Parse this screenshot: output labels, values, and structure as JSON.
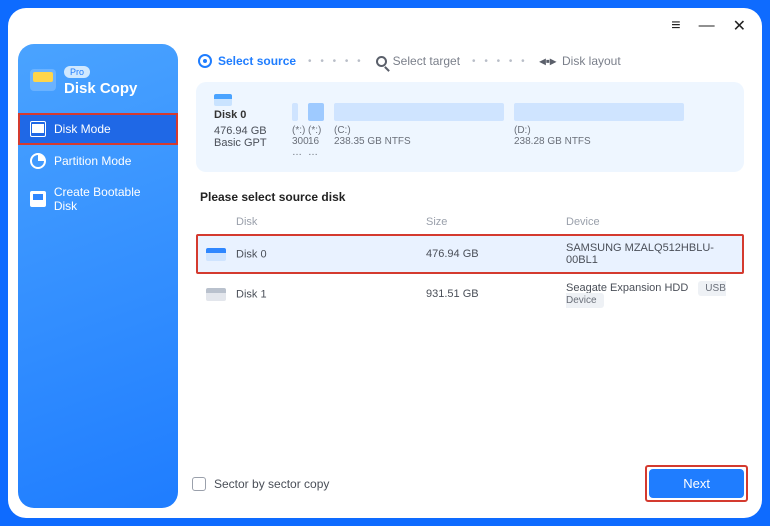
{
  "brand": {
    "badge": "Pro",
    "name": "Disk Copy"
  },
  "nav": {
    "disk_mode": "Disk Mode",
    "partition_mode": "Partition Mode",
    "bootable": "Create Bootable Disk"
  },
  "titlebar": {
    "menu": "≡",
    "min": "—",
    "close": "✕"
  },
  "steps": {
    "source": "Select source",
    "target": "Select target",
    "layout": "Disk layout",
    "layout_icon": "◂▪▸"
  },
  "disk_panel": {
    "name": "Disk 0",
    "capacity": "476.94 GB",
    "type": "Basic GPT",
    "partitions": [
      {
        "letter": "(*:)",
        "detail": "300 …",
        "width": 6,
        "shade": "light"
      },
      {
        "letter": "(*:)",
        "detail": "16 …",
        "width": 16,
        "shade": ""
      },
      {
        "letter": "(C:)",
        "detail": "238.35 GB NTFS",
        "width": 170,
        "shade": "light"
      },
      {
        "letter": "(D:)",
        "detail": "238.28 GB NTFS",
        "width": 170,
        "shade": "light"
      }
    ]
  },
  "section_title": "Please select source disk",
  "columns": {
    "disk": "Disk",
    "size": "Size",
    "device": "Device"
  },
  "rows": [
    {
      "name": "Disk 0",
      "size": "476.94 GB",
      "device": "SAMSUNG MZALQ512HBLU-00BL1",
      "selected": true,
      "usb": false
    },
    {
      "name": "Disk 1",
      "size": "931.51 GB",
      "device": "Seagate  Expansion HDD",
      "selected": false,
      "usb": true
    }
  ],
  "usb_label": "USB Device",
  "footer": {
    "sector": "Sector by sector copy",
    "next": "Next"
  },
  "colors": {
    "accent": "#1f7dff",
    "highlight_border": "#d43a2f",
    "panel_bg": "#eef6ff"
  }
}
